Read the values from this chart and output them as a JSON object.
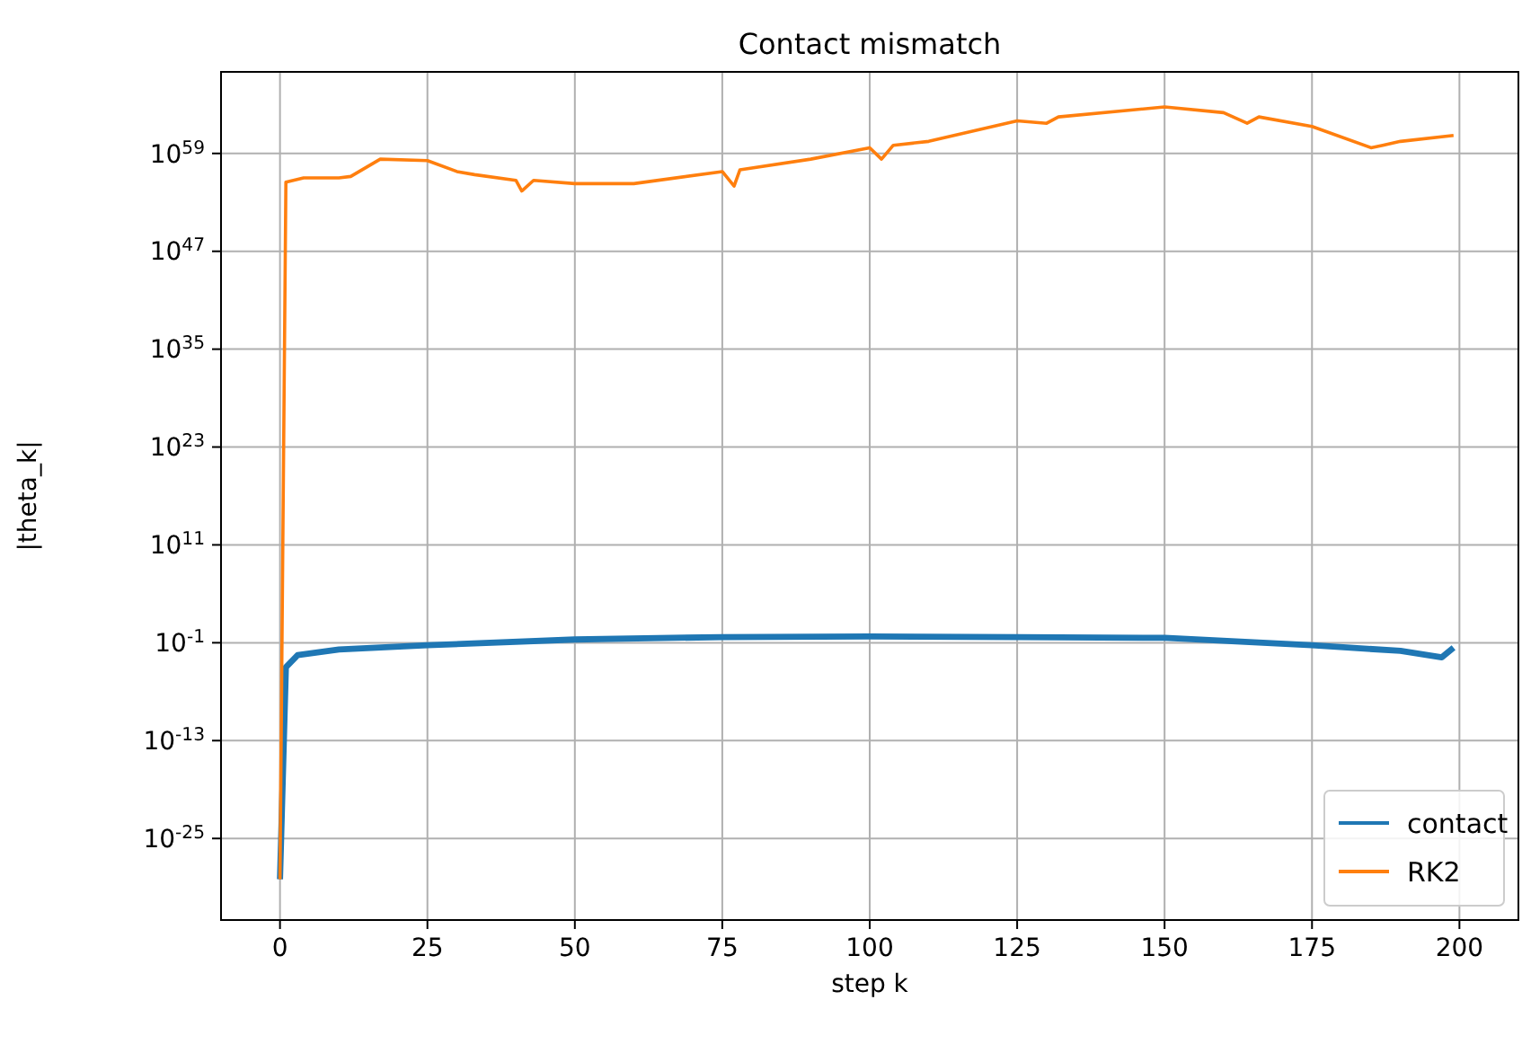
{
  "chart_data": {
    "type": "line",
    "title": "Contact mismatch",
    "xlabel": "step k",
    "ylabel": "|theta_k|",
    "log": "y",
    "grid": true,
    "legend": "bottom right",
    "xlim": [
      -10,
      210
    ],
    "xticks": [
      0,
      25,
      50,
      75,
      100,
      125,
      150,
      175,
      200
    ],
    "ylim": [
      1e-35,
      1e+69
    ],
    "yticks": [
      {
        "value": 1e-25,
        "label": "10$^{-25}$"
      },
      {
        "value": 1e-13,
        "label": "10$^{-13}$"
      },
      {
        "value": 0.1,
        "label": "10$^{-1}$"
      },
      {
        "value": 100000000000.0,
        "label": "10$^{11}$"
      },
      {
        "value": 1e+23,
        "label": "10$^{23}$"
      },
      {
        "value": 1e+35,
        "label": "10$^{35}$"
      },
      {
        "value": 1e+47,
        "label": "10$^{47}$"
      },
      {
        "value": 1e+59,
        "label": "10$^{59}$"
      }
    ],
    "series": [
      {
        "name": "contact",
        "color": "#1f77b4",
        "x": [
          0,
          1,
          3,
          10,
          25,
          50,
          75,
          100,
          125,
          150,
          175,
          190,
          197,
          199
        ],
        "values": [
          1e-30,
          0.0001,
          0.003,
          0.015,
          0.05,
          0.25,
          0.5,
          0.6,
          0.5,
          0.4,
          0.05,
          0.01,
          0.0016,
          0.025
        ]
      },
      {
        "name": "RK2",
        "color": "#ff7f0e",
        "x": [
          0,
          1,
          4,
          10,
          12,
          17,
          25,
          30,
          33,
          40,
          41,
          43,
          50,
          60,
          75,
          77,
          78,
          90,
          100,
          102,
          104,
          110,
          125,
          130,
          132,
          150,
          160,
          164,
          166,
          175,
          185,
          187,
          190,
          199
        ],
        "values": [
          1e-30,
          3e+55,
          1e+56,
          1e+56,
          1.5e+56,
          2e+58,
          1.3e+58,
          6e+56,
          2.5e+56,
          5e+55,
          2.5e+54,
          5e+55,
          2e+55,
          2e+55,
          6e+56,
          1e+55,
          1e+57,
          2e+58,
          5e+59,
          2e+58,
          1e+60,
          3e+60,
          1e+63,
          5e+62,
          3e+63,
          5e+64,
          1e+64,
          5e+62,
          3e+63,
          2e+62,
          5e+59,
          1e+60,
          3e+60,
          1.6e+61
        ]
      }
    ]
  }
}
